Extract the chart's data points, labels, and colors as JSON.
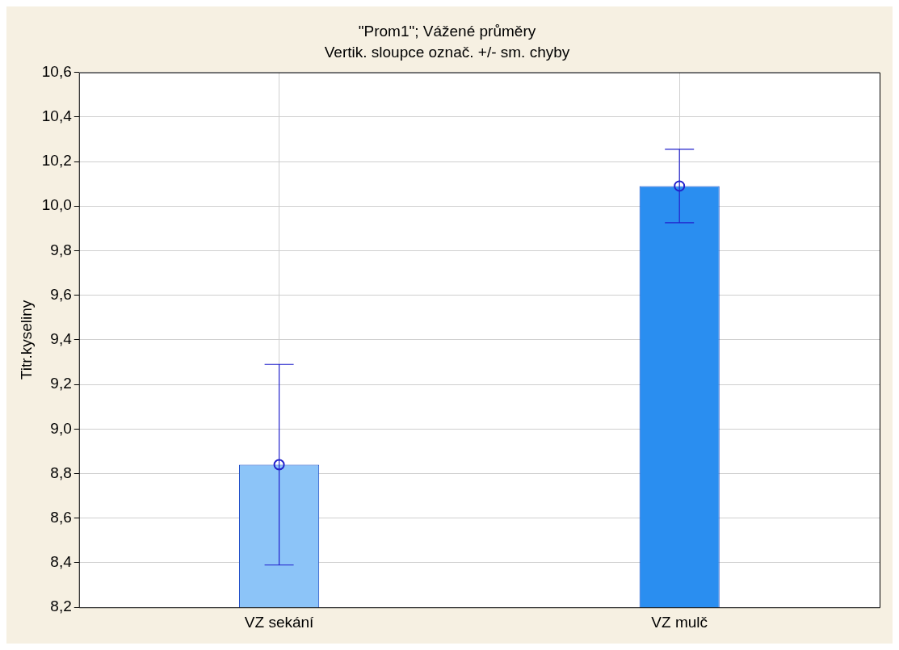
{
  "chart_data": {
    "type": "bar",
    "title": "\"Prom1\"; Vážené průměry",
    "subtitle": "Vertik. sloupce označ. +/- sm. chyby",
    "ylabel": "Titr.kyseliny",
    "categories": [
      "VZ sekání",
      "VZ mulč"
    ],
    "series": [
      {
        "type": "bar",
        "values": [
          8.84,
          10.09
        ],
        "errors": [
          0.45,
          0.165
        ],
        "colors": [
          "#8cc4f8",
          "#2a8ef0"
        ]
      },
      {
        "type": "scatter",
        "x": [
          "VZ sekání",
          "VZ mulč"
        ],
        "values": [
          8.84,
          10.09
        ],
        "color": "#2222cc",
        "marker": "circle"
      }
    ],
    "ylim": [
      8.2,
      10.6
    ],
    "yticks": [
      {
        "value": 8.2,
        "label": "8,2"
      },
      {
        "value": 8.4,
        "label": "8,4"
      },
      {
        "value": 8.6,
        "label": "8,6"
      },
      {
        "value": 8.8,
        "label": "8,8"
      },
      {
        "value": 9.0,
        "label": "9,0"
      },
      {
        "value": 9.2,
        "label": "9,2"
      },
      {
        "value": 9.4,
        "label": "9,4"
      },
      {
        "value": 9.6,
        "label": "9,6"
      },
      {
        "value": 9.8,
        "label": "9,8"
      },
      {
        "value": 10.0,
        "label": "10,0"
      },
      {
        "value": 10.2,
        "label": "10,2"
      },
      {
        "value": 10.4,
        "label": "10,4"
      },
      {
        "value": 10.6,
        "label": "10,6"
      }
    ],
    "grid": true,
    "legend": false
  }
}
